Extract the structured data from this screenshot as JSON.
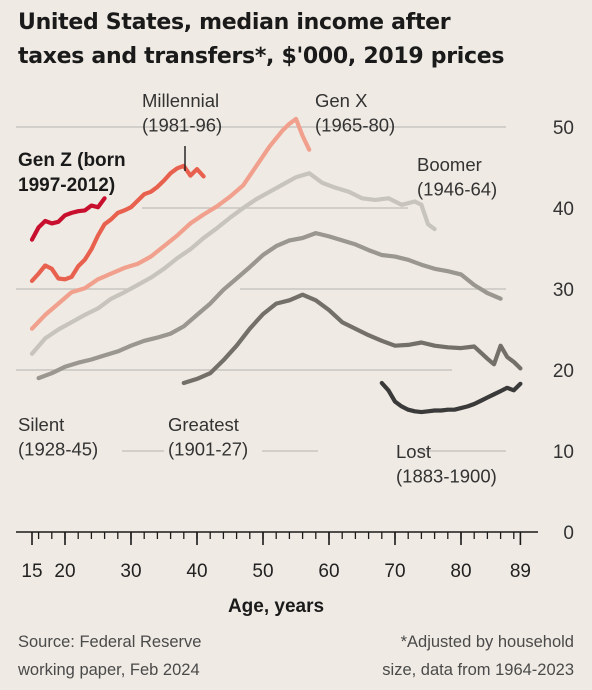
{
  "title_line1": "United States, median income after",
  "title_line2": "taxes and transfers*, $'000, 2019 prices",
  "source_line1": "Source: Federal Reserve",
  "source_line2": "working paper, Feb 2024",
  "note_line1": "*Adjusted by household",
  "note_line2": "size, data from 1964-2023",
  "chart_data": {
    "type": "line",
    "title": "United States, median income after taxes and transfers*, $'000, 2019 prices",
    "xlabel": "Age, years",
    "ylabel": "",
    "x_ticks": [
      "15",
      "20",
      "30",
      "40",
      "50",
      "60",
      "70",
      "80",
      "89"
    ],
    "y_ticks": [
      "0",
      "10",
      "20",
      "30",
      "40",
      "50"
    ],
    "xlim": [
      15,
      89
    ],
    "ylim": [
      0,
      50
    ],
    "grid": true,
    "legend": "inline labels",
    "series": [
      {
        "name": "Gen Z (born 1997-2012)",
        "color": "#c8102e",
        "x": [
          15,
          16,
          17,
          18,
          19,
          20,
          21,
          22,
          23,
          24,
          25,
          26
        ],
        "y": [
          36.1,
          37.6,
          38.4,
          38.1,
          38.3,
          39.1,
          39.4,
          39.6,
          39.7,
          40.3,
          40.1,
          41.2
        ]
      },
      {
        "name": "Millennial (1981-96)",
        "color": "#e8604e",
        "x": [
          15,
          16,
          17,
          18,
          19,
          20,
          21,
          22,
          23,
          24,
          25,
          26,
          27,
          28,
          29,
          30,
          31,
          32,
          33,
          34,
          35,
          36,
          37,
          38,
          39,
          40,
          41
        ],
        "y": [
          31.0,
          31.9,
          32.9,
          32.5,
          31.3,
          31.2,
          31.5,
          32.8,
          33.6,
          34.9,
          36.6,
          38.0,
          38.6,
          39.4,
          39.7,
          40.1,
          40.9,
          41.7,
          42.0,
          42.6,
          43.4,
          44.3,
          44.9,
          45.2,
          44.0,
          44.8,
          43.9
        ]
      },
      {
        "name": "Gen X (1965-80)",
        "color": "#f0a08c",
        "x": [
          15,
          17,
          19,
          21,
          23,
          25,
          27,
          29,
          31,
          33,
          35,
          37,
          39,
          41,
          43,
          45,
          47,
          49,
          51,
          53,
          54,
          55,
          56,
          57
        ],
        "y": [
          25.1,
          26.8,
          28.2,
          29.6,
          30.1,
          31.2,
          31.9,
          32.6,
          33.1,
          34.0,
          35.3,
          36.6,
          38.1,
          39.2,
          40.2,
          41.4,
          42.8,
          45.2,
          47.6,
          49.6,
          50.4,
          51.0,
          48.9,
          47.2
        ]
      },
      {
        "name": "Boomer (1946-64)",
        "color": "#c7c3bd",
        "x": [
          15,
          17,
          19,
          21,
          23,
          25,
          27,
          29,
          31,
          33,
          35,
          37,
          39,
          41,
          43,
          45,
          47,
          49,
          51,
          53,
          55,
          57,
          59,
          61,
          63,
          65,
          67,
          69,
          71,
          73,
          74,
          75,
          76
        ],
        "y": [
          22.0,
          23.9,
          25.0,
          25.9,
          26.8,
          27.6,
          28.8,
          29.6,
          30.5,
          31.4,
          32.5,
          33.8,
          34.9,
          36.3,
          37.5,
          38.8,
          40.0,
          41.1,
          42.0,
          42.9,
          43.8,
          44.3,
          43.1,
          42.5,
          42.0,
          41.2,
          41.0,
          41.2,
          40.4,
          40.8,
          40.4,
          38.0,
          37.4
        ]
      },
      {
        "name": "Silent (1928-45)",
        "color": "#9a9690",
        "x": [
          16,
          18,
          20,
          22,
          24,
          26,
          28,
          30,
          32,
          34,
          36,
          38,
          40,
          42,
          44,
          46,
          48,
          50,
          52,
          54,
          56,
          58,
          60,
          62,
          64,
          66,
          68,
          70,
          72,
          74,
          76,
          78,
          80,
          82,
          84,
          86
        ],
        "y": [
          19.0,
          19.6,
          20.4,
          20.9,
          21.3,
          21.8,
          22.3,
          23.0,
          23.6,
          24.0,
          24.5,
          25.4,
          26.8,
          28.2,
          29.9,
          31.3,
          32.7,
          34.2,
          35.3,
          36.0,
          36.3,
          36.9,
          36.5,
          36.0,
          35.5,
          34.8,
          34.2,
          34.0,
          33.6,
          33.0,
          32.5,
          32.2,
          31.8,
          30.5,
          29.5,
          28.8
        ]
      },
      {
        "name": "Greatest (1901-27)",
        "color": "#727068",
        "x": [
          38,
          40,
          42,
          44,
          46,
          48,
          50,
          52,
          54,
          56,
          58,
          60,
          62,
          64,
          66,
          68,
          70,
          72,
          74,
          76,
          78,
          80,
          82,
          84,
          85,
          86,
          87,
          88,
          89
        ],
        "y": [
          18.4,
          18.9,
          19.6,
          21.2,
          23.0,
          25.1,
          26.9,
          28.2,
          28.6,
          29.3,
          28.6,
          27.4,
          25.9,
          25.1,
          24.3,
          23.6,
          23.0,
          23.1,
          23.4,
          23.0,
          22.8,
          22.7,
          22.9,
          21.4,
          20.7,
          23.0,
          21.6,
          21.0,
          20.2
        ]
      },
      {
        "name": "Lost (1883-1900)",
        "color": "#3a3a3a",
        "x": [
          68,
          69,
          70,
          71,
          72,
          73,
          74,
          75,
          76,
          77,
          78,
          79,
          80,
          81,
          82,
          83,
          84,
          85,
          86,
          87,
          88,
          89
        ],
        "y": [
          18.4,
          17.5,
          16.1,
          15.5,
          15.1,
          14.9,
          14.8,
          14.9,
          15.0,
          15.0,
          15.1,
          15.1,
          15.3,
          15.5,
          15.8,
          16.2,
          16.6,
          17.0,
          17.4,
          17.8,
          17.5,
          18.3
        ]
      }
    ],
    "labels": [
      {
        "series": "Gen Z (born 1997-2012)",
        "lines": [
          "Gen Z (born",
          "1997-2012)"
        ]
      },
      {
        "series": "Millennial (1981-96)",
        "lines": [
          "Millennial",
          "(1981-96)"
        ]
      },
      {
        "series": "Gen X (1965-80)",
        "lines": [
          "Gen X",
          "(1965-80)"
        ]
      },
      {
        "series": "Boomer (1946-64)",
        "lines": [
          "Boomer",
          "(1946-64)"
        ]
      },
      {
        "series": "Silent (1928-45)",
        "lines": [
          "Silent",
          "(1928-45)"
        ]
      },
      {
        "series": "Greatest (1901-27)",
        "lines": [
          "Greatest",
          "(1901-27)"
        ]
      },
      {
        "series": "Lost (1883-1900)",
        "lines": [
          "Lost",
          "(1883-1900)"
        ]
      }
    ]
  }
}
